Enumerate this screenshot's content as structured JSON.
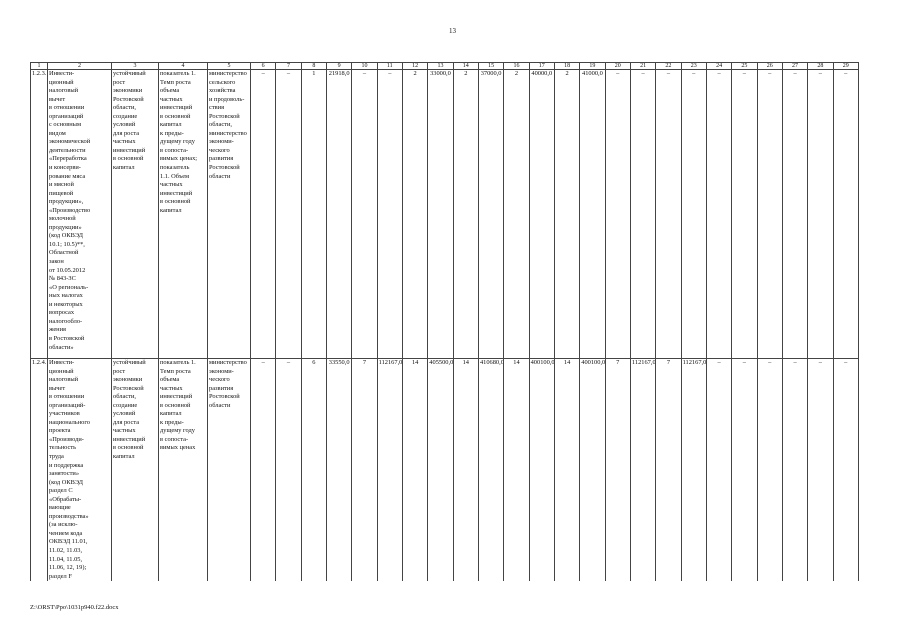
{
  "page_number": "13",
  "header": [
    "1",
    "2",
    "3",
    "4",
    "5",
    "6",
    "7",
    "8",
    "9",
    "10",
    "11",
    "12",
    "13",
    "14",
    "15",
    "16",
    "17",
    "18",
    "19",
    "20",
    "21",
    "22",
    "23",
    "24",
    "25",
    "26",
    "27",
    "28",
    "29"
  ],
  "rows": [
    {
      "id": "1.2.3.",
      "name": "Инвести-\nционный\nналоговый\nвычет\nв отношении\nорганизаций\nс основным\nвидом\nэкономической\nдеятельности\n«Переработка\nи консерви-\nрование мяса\nи мясной\nпищевой\nпродукции»,\n«Производство\nмолочной\nпродукции»\n(код ОКВЭД\n10.1; 10.5)**,\nОбластной\nзакон\nот 10.05.2012\n№ 843-ЗС\n«О региональ-\nных налогах\nи некоторых\nвопросах\nналогообло-\nжения\nв Ростовской\nобласти»",
      "goal": "устойчивый\nрост\nэкономики\nРостовской\nобласти,\nсоздание\nусловий\nдля роста\nчастных\nинвестиций\nв основной\nкапитал",
      "indicator": "показатель 1.\nТемп роста\nобъема\nчастных\nинвестиций\nв основной\nкапитал\nк преды-\nдущему году\nв сопоста-\nвимых ценах;\nпоказатель\n1.1. Объем\nчастных\nинвестиций\nв основной\nкапитал",
      "responsible": "министерство\nсельского\nхозяйства\nи продоволь-\nствия\nРостовской\nобласти,\nминистерство\nэкономи-\nческого\nразвития\nРостовской\nобласти",
      "values": [
        "–",
        "–",
        "1",
        "21918,0",
        "–",
        "–",
        "2",
        "33000,0",
        "2",
        "37000,0",
        "2",
        "40000,0",
        "2",
        "41000,0",
        "–",
        "–",
        "–",
        "–",
        "–",
        "–",
        "–",
        "–",
        "–",
        "–"
      ]
    },
    {
      "id": "1.2.4.",
      "name": "Инвести-\nционный\nналоговый\nвычет\nв отношении\nорганизаций-\nучастников\nнационального\nпроекта\n«Производи-\nтельность\nтруда\nи поддержка\nзанятости»\n(код ОКВЭД\nраздел С\n«Обрабаты-\nвающие\nпроизводства»\n(за исклю-\nчением кода\nОКВЭД 11.01,\n11.02, 11.03,\n11.04, 11.05,\n11.06, 12, 19);\nраздел F",
      "goal": "устойчивый\nрост\nэкономики\nРостовской\nобласти,\nсоздание\nусловий\nдля роста\nчастных\nинвестиций\nв основной\nкапитал",
      "indicator": "показатель 1.\nТемп роста\nобъема\nчастных\nинвестиций\nв основной\nкапитал\nк преды-\nдущему году\nв сопоста-\nвимых ценах",
      "responsible": "министерство\nэкономи-\nческого\nразвития\nРостовской\nобласти",
      "values": [
        "–",
        "–",
        "6",
        "33550,0",
        "7",
        "112167,0",
        "14",
        "405500,0",
        "14",
        "410680,0",
        "14",
        "400100,0",
        "14",
        "400100,0",
        "7",
        "112167,0",
        "7",
        "112167,0",
        "–",
        "–",
        "–",
        "–",
        "–",
        "–"
      ]
    }
  ],
  "footer": "Z:\\ORST\\Ppo\\1031p940.f22.docx"
}
